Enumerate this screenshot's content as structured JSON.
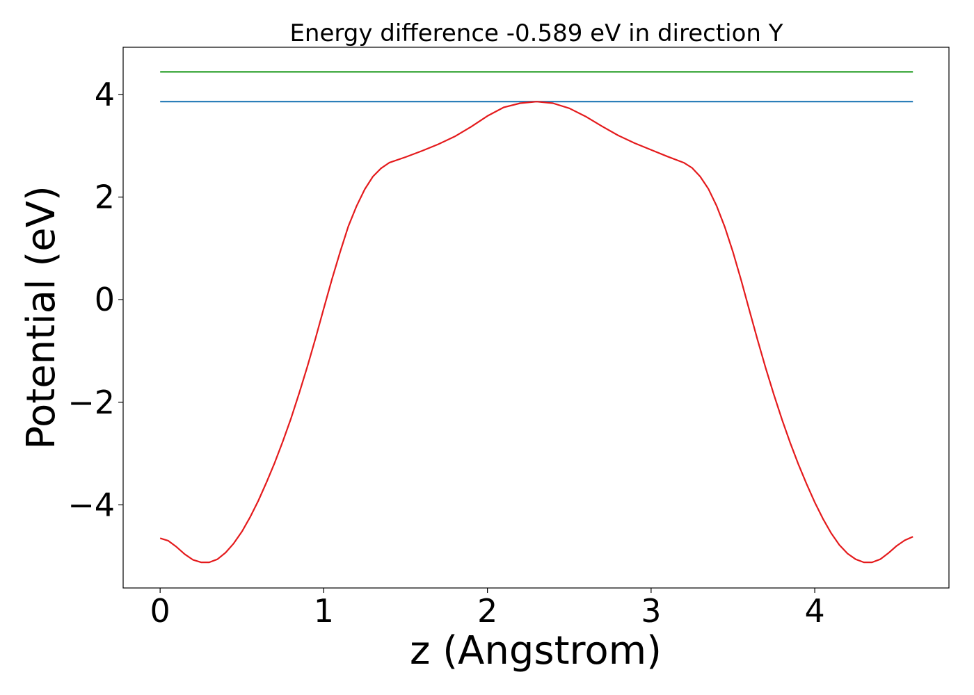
{
  "chart_data": {
    "type": "line",
    "title": "Energy difference -0.589 eV in direction Y",
    "xlabel": "z (Angstrom)",
    "ylabel": "Potential (eV)",
    "xlim": [
      -0.226,
      4.82
    ],
    "ylim": [
      -5.62,
      4.92
    ],
    "xticks": [
      {
        "value": 0,
        "label": "0"
      },
      {
        "value": 1,
        "label": "1"
      },
      {
        "value": 2,
        "label": "2"
      },
      {
        "value": 3,
        "label": "3"
      },
      {
        "value": 4,
        "label": "4"
      }
    ],
    "yticks": [
      {
        "value": -4,
        "label": "−4"
      },
      {
        "value": -2,
        "label": "−2"
      },
      {
        "value": 0,
        "label": "0"
      },
      {
        "value": 2,
        "label": "2"
      },
      {
        "value": 4,
        "label": "4"
      }
    ],
    "grid": false,
    "series": [
      {
        "color": "#2ca02c",
        "x": [
          0,
          4.6
        ],
        "y": [
          4.44,
          4.44
        ]
      },
      {
        "color": "#1f77b4",
        "x": [
          0,
          4.6
        ],
        "y": [
          3.86,
          3.86
        ]
      },
      {
        "color": "#e41a1c",
        "x": [
          0,
          0.05,
          0.1,
          0.15,
          0.2,
          0.25,
          0.3,
          0.35,
          0.4,
          0.45,
          0.5,
          0.55,
          0.6,
          0.65,
          0.7,
          0.75,
          0.8,
          0.85,
          0.9,
          0.95,
          1.0,
          1.05,
          1.1,
          1.15,
          1.2,
          1.25,
          1.3,
          1.35,
          1.4,
          1.5,
          1.6,
          1.7,
          1.8,
          1.9,
          2.0,
          2.1,
          2.2,
          2.3,
          2.4,
          2.5,
          2.6,
          2.7,
          2.8,
          2.9,
          3.0,
          3.1,
          3.2,
          3.25,
          3.3,
          3.35,
          3.4,
          3.45,
          3.5,
          3.55,
          3.6,
          3.65,
          3.7,
          3.75,
          3.8,
          3.85,
          3.9,
          3.95,
          4.0,
          4.05,
          4.1,
          4.15,
          4.2,
          4.25,
          4.3,
          4.35,
          4.4,
          4.45,
          4.5,
          4.55,
          4.6
        ],
        "y": [
          -4.65,
          -4.7,
          -4.82,
          -4.96,
          -5.07,
          -5.12,
          -5.12,
          -5.06,
          -4.93,
          -4.75,
          -4.52,
          -4.24,
          -3.92,
          -3.56,
          -3.18,
          -2.76,
          -2.31,
          -1.82,
          -1.3,
          -0.75,
          -0.17,
          0.4,
          0.93,
          1.43,
          1.82,
          2.15,
          2.4,
          2.56,
          2.67,
          2.78,
          2.9,
          3.03,
          3.18,
          3.37,
          3.58,
          3.75,
          3.83,
          3.86,
          3.83,
          3.73,
          3.57,
          3.38,
          3.2,
          3.05,
          2.92,
          2.79,
          2.67,
          2.57,
          2.4,
          2.16,
          1.83,
          1.42,
          0.93,
          0.38,
          -0.2,
          -0.78,
          -1.33,
          -1.85,
          -2.34,
          -2.79,
          -3.21,
          -3.59,
          -3.95,
          -4.27,
          -4.55,
          -4.78,
          -4.95,
          -5.06,
          -5.12,
          -5.12,
          -5.06,
          -4.94,
          -4.8,
          -4.69,
          -4.62
        ]
      }
    ]
  }
}
